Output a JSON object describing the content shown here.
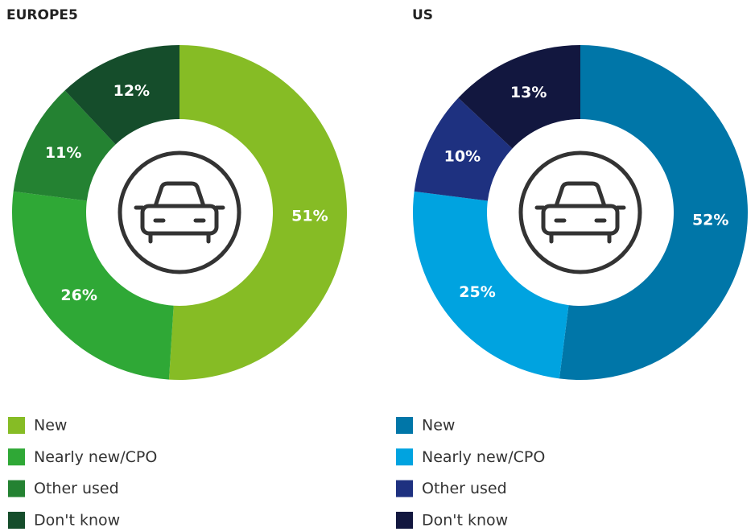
{
  "chart_data": [
    {
      "type": "pie",
      "title": "EUROPE5",
      "categories": [
        "New",
        "Nearly new/CPO",
        "Other used",
        "Don't know"
      ],
      "values": [
        51,
        26,
        11,
        12
      ],
      "value_labels": [
        "51%",
        "26%",
        "11%",
        "12%"
      ],
      "colors": [
        "#86bc25",
        "#2fa836",
        "#248232",
        "#154d2b"
      ]
    },
    {
      "type": "pie",
      "title": "US",
      "categories": [
        "New",
        "Nearly new/CPO",
        "Other used",
        "Don't know"
      ],
      "values": [
        52,
        25,
        10,
        13
      ],
      "value_labels": [
        "52%",
        "25%",
        "10%",
        "13%"
      ],
      "colors": [
        "#0076a8",
        "#00a3e0",
        "#1e3180",
        "#12173f"
      ]
    }
  ]
}
